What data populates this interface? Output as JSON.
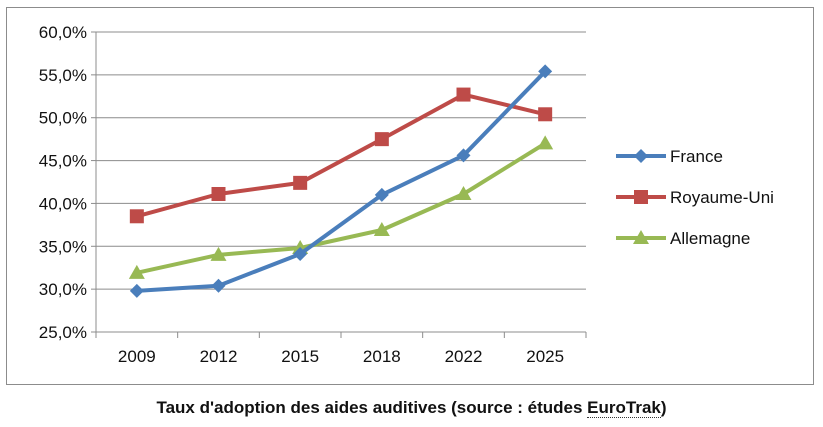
{
  "chart_data": {
    "type": "line",
    "categories": [
      "2009",
      "2012",
      "2015",
      "2018",
      "2022",
      "2025"
    ],
    "series": [
      {
        "name": "France",
        "values": [
          29.8,
          30.4,
          34.1,
          41.0,
          45.6,
          55.4
        ],
        "color": "#4a7ebb",
        "marker": "diamond"
      },
      {
        "name": "Royaume-Uni",
        "values": [
          38.5,
          41.1,
          42.4,
          47.5,
          52.7,
          50.4
        ],
        "color": "#be4b48",
        "marker": "square"
      },
      {
        "name": "Allemagne",
        "values": [
          31.9,
          34.0,
          34.8,
          36.9,
          41.1,
          47.0
        ],
        "color": "#98b954",
        "marker": "triangle"
      }
    ],
    "yticks": [
      "25,0%",
      "30,0%",
      "35,0%",
      "40,0%",
      "45,0%",
      "50,0%",
      "55,0%",
      "60,0%"
    ],
    "ylim": [
      25,
      60
    ],
    "grid": true,
    "legend_position": "right"
  },
  "caption": {
    "prefix": "Taux d'adoption des aides auditives (source : études ",
    "source": "EuroTrak",
    "suffix": ")"
  }
}
